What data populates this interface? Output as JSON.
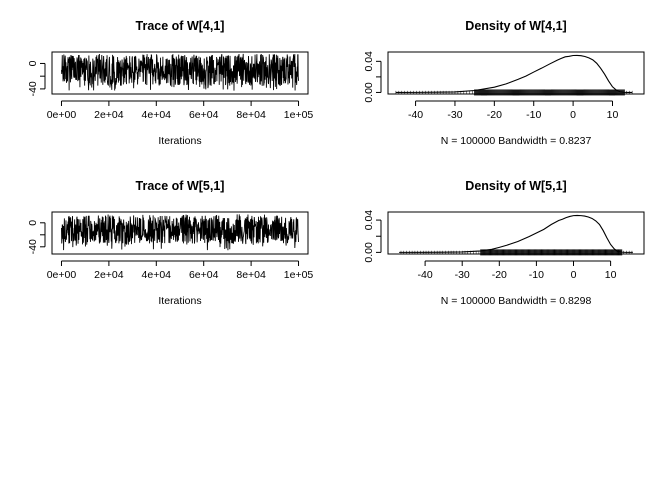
{
  "chart_data": [
    {
      "type": "line",
      "title": "Trace of W[4,1]",
      "xlabel": "Iterations",
      "x_ticks": [
        "0e+00",
        "2e+04",
        "4e+04",
        "6e+04",
        "8e+04",
        "1e+05"
      ],
      "x_tick_values": [
        0,
        20000,
        40000,
        60000,
        80000,
        100000
      ],
      "y_ticks": [
        "-40",
        "0"
      ],
      "y_tick_values": [
        -40,
        0
      ],
      "xlim": [
        -4000,
        104000
      ],
      "ylim": [
        -48,
        18
      ],
      "series": [
        {
          "x_range": [
            1,
            100000
          ],
          "band": [
            -35,
            14
          ],
          "extremes": [
            -43,
            15
          ]
        }
      ],
      "color": "#000000"
    },
    {
      "type": "line",
      "title": "Density of W[4,1]",
      "xlabel": "N = 100000   Bandwidth = 0.8237",
      "x_ticks": [
        "-40",
        "-30",
        "-20",
        "-10",
        "0",
        "10"
      ],
      "x_tick_values": [
        -40,
        -30,
        -20,
        -10,
        0,
        10
      ],
      "y_ticks": [
        "0.00",
        "0.04"
      ],
      "y_tick_values": [
        0,
        0.04
      ],
      "xlim": [
        -47,
        18
      ],
      "ylim": [
        -0.002,
        0.052
      ],
      "series": [
        {
          "x": [
            -45,
            -40,
            -35,
            -30,
            -25,
            -20,
            -17,
            -14,
            -12,
            -10,
            -8,
            -6,
            -4,
            -3,
            -2,
            -1,
            0,
            1,
            2,
            3,
            4,
            5,
            6,
            7,
            8,
            9,
            10,
            11,
            12,
            13,
            14,
            15
          ],
          "y": [
            0,
            0.0001,
            0.0003,
            0.0007,
            0.0025,
            0.0068,
            0.011,
            0.0168,
            0.021,
            0.0262,
            0.0312,
            0.0365,
            0.0415,
            0.0438,
            0.0458,
            0.0465,
            0.0475,
            0.0476,
            0.0472,
            0.0462,
            0.0445,
            0.0419,
            0.0375,
            0.031,
            0.0235,
            0.0148,
            0.0073,
            0.003,
            0.0009,
            0.0002,
            0,
            0
          ]
        }
      ],
      "rug": true,
      "color": "#000000"
    },
    {
      "type": "line",
      "title": "Trace of W[5,1]",
      "xlabel": "Iterations",
      "x_ticks": [
        "0e+00",
        "2e+04",
        "4e+04",
        "6e+04",
        "8e+04",
        "1e+05"
      ],
      "x_tick_values": [
        0,
        20000,
        40000,
        60000,
        80000,
        100000
      ],
      "y_ticks": [
        "-40",
        "0"
      ],
      "y_tick_values": [
        -40,
        0
      ],
      "xlim": [
        -4000,
        104000
      ],
      "ylim": [
        -52,
        18
      ],
      "series": [
        {
          "x_range": [
            1,
            100000
          ],
          "band": [
            -35,
            12
          ],
          "extremes": [
            -46,
            14
          ]
        }
      ],
      "color": "#000000"
    },
    {
      "type": "line",
      "title": "Density of W[5,1]",
      "xlabel": "N = 100000   Bandwidth = 0.8298",
      "x_ticks": [
        "-40",
        "-30",
        "-20",
        "-10",
        "0",
        "10"
      ],
      "x_tick_values": [
        -40,
        -30,
        -20,
        -10,
        0,
        10
      ],
      "y_ticks": [
        "0.00",
        "0.04"
      ],
      "y_tick_values": [
        0,
        0.04
      ],
      "xlim": [
        -50,
        19
      ],
      "ylim": [
        -0.002,
        0.05
      ],
      "series": [
        {
          "x": [
            -47,
            -40,
            -35,
            -30,
            -25,
            -22,
            -20,
            -18,
            -15,
            -12,
            -10,
            -8,
            -6,
            -4,
            -3,
            -2,
            -1,
            0,
            1,
            2,
            3,
            4,
            5,
            6,
            7,
            8,
            9,
            10,
            11,
            12,
            13,
            14,
            16
          ],
          "y": [
            0,
            0.0001,
            0.0002,
            0.0006,
            0.0018,
            0.0038,
            0.0062,
            0.0088,
            0.0135,
            0.0195,
            0.024,
            0.0285,
            0.0345,
            0.0395,
            0.041,
            0.043,
            0.0445,
            0.0455,
            0.0458,
            0.0455,
            0.045,
            0.0438,
            0.042,
            0.039,
            0.0345,
            0.027,
            0.018,
            0.0098,
            0.0042,
            0.0012,
            0.0003,
            0,
            0
          ]
        }
      ],
      "rug": true,
      "color": "#000000"
    }
  ]
}
